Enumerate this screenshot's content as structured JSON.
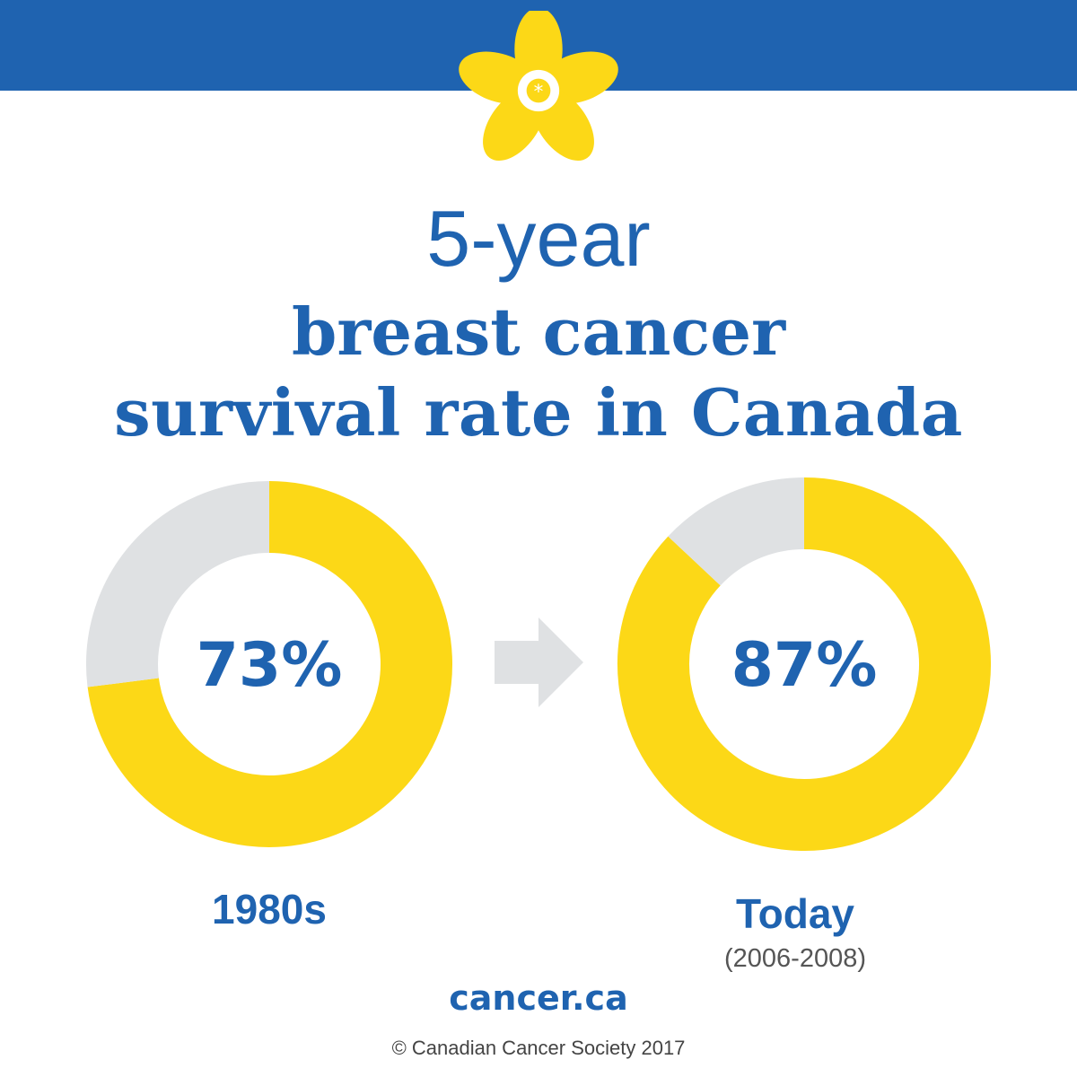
{
  "header": {
    "band_color": "#1f63b0",
    "logo_icon": "daffodil-icon",
    "logo_color": "#fcd817"
  },
  "chart_data": {
    "type": "pie",
    "title_line1": "5-year",
    "title_line2": "breast cancer",
    "title_line3": "survival rate in Canada",
    "colors": {
      "value": "#fcd817",
      "remainder": "#dfe1e3",
      "text": "#1f63b0",
      "arrow": "#dfe1e3"
    },
    "charts": [
      {
        "category": "1980s",
        "sublabel": "",
        "value": 73,
        "remainder": 27,
        "label": "73%"
      },
      {
        "category": "Today",
        "sublabel": "(2006-2008)",
        "value": 87,
        "remainder": 13,
        "label": "87%"
      }
    ]
  },
  "footer": {
    "url": "cancer.ca",
    "copyright": "© Canadian Cancer Society 2017"
  }
}
